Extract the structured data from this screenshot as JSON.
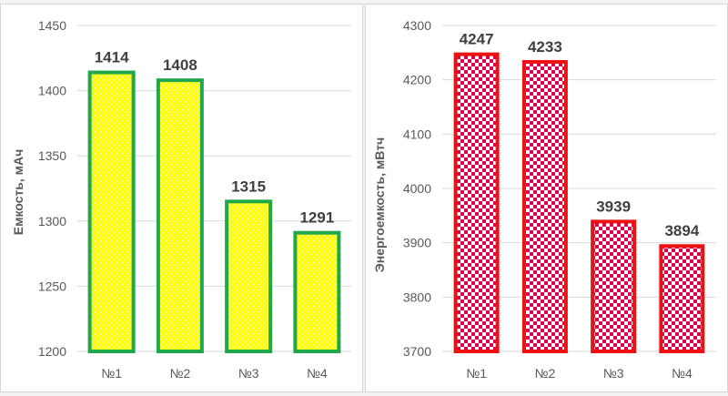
{
  "chart_data": [
    {
      "type": "bar",
      "categories": [
        "№1",
        "№2",
        "№3",
        "№4"
      ],
      "values": [
        1414,
        1408,
        1315,
        1291
      ],
      "data_labels": [
        "1414",
        "1408",
        "1315",
        "1291"
      ],
      "title": "",
      "xlabel": "",
      "ylabel": "Емкость, мАч",
      "ylim": [
        1200,
        1450
      ],
      "yticks": [
        1200,
        1250,
        1300,
        1350,
        1400,
        1450
      ],
      "ytick_labels": [
        "1200",
        "1250",
        "1300",
        "1350",
        "1400",
        "1450"
      ],
      "grid": true,
      "legend": "none",
      "bar_fill": "#ffff00",
      "bar_pattern_color": "#f0f0c0",
      "bar_stroke": "#1fa84a"
    },
    {
      "type": "bar",
      "categories": [
        "№1",
        "№2",
        "№3",
        "№4"
      ],
      "values": [
        4247,
        4233,
        3939,
        3894
      ],
      "data_labels": [
        "4247",
        "4233",
        "3939",
        "3894"
      ],
      "title": "",
      "xlabel": "",
      "ylabel": "Энергоемкость, мВтч",
      "ylim": [
        3700,
        4300
      ],
      "yticks": [
        3700,
        3800,
        3900,
        4000,
        4100,
        4200,
        4300
      ],
      "ytick_labels": [
        "3700",
        "3800",
        "3900",
        "4000",
        "4100",
        "4200",
        "4300"
      ],
      "grid": true,
      "legend": "none",
      "bar_fill": "#d9004c",
      "bar_pattern_color": "#ffffff",
      "bar_stroke": "#ee1111"
    }
  ],
  "colors": {
    "gridline": "#d9d9d9",
    "axis_text": "#595959",
    "data_label": "#404040"
  }
}
